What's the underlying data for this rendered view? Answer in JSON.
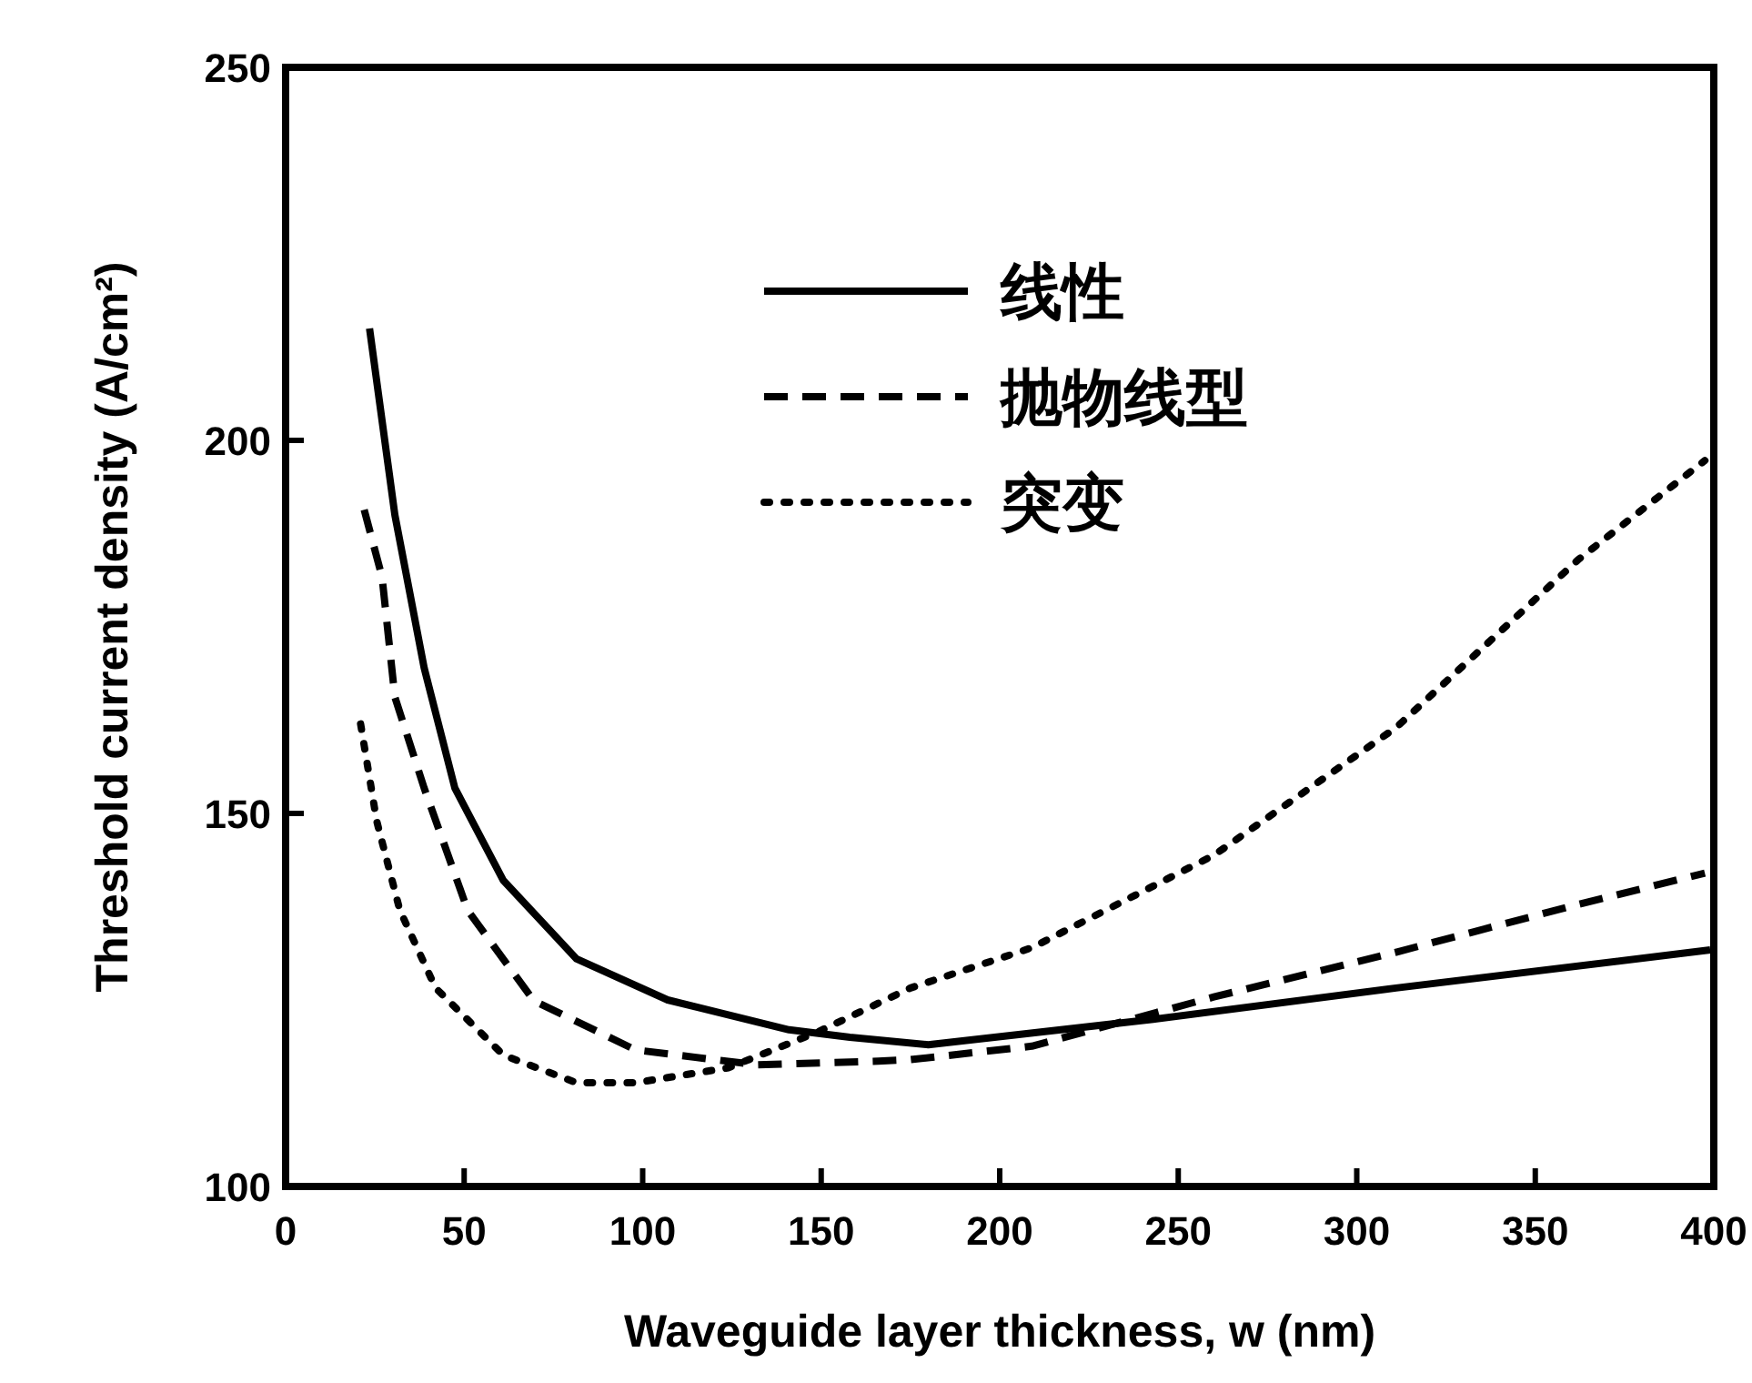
{
  "chart_data": {
    "type": "line",
    "xlabel": "Waveguide layer thickness, w (nm)",
    "ylabel": "Threshold current density (A/cm²)",
    "xlim": [
      0,
      400
    ],
    "ylim": [
      100,
      250
    ],
    "xticks": [
      0,
      50,
      100,
      150,
      200,
      250,
      300,
      350,
      400
    ],
    "yticks": [
      100,
      150,
      200,
      250
    ],
    "legend": "top",
    "series": [
      {
        "name": "线性",
        "color": "#000000",
        "line_style": "solid",
        "x": [
          23.5,
          30.6,
          38.8,
          47.4,
          61,
          81.5,
          107,
          141,
          158,
          180,
          243,
          311,
          399
        ],
        "values": [
          215,
          190,
          169.5,
          153.4,
          141,
          130.5,
          125,
          121,
          120,
          119,
          122.4,
          126.6,
          131.7
        ]
      },
      {
        "name": "抛物线型",
        "color": "#000000",
        "line_style": "dashed",
        "x": [
          22,
          27,
          30.6,
          38.8,
          51,
          69.5,
          98,
          132,
          166,
          175,
          209,
          260,
          311,
          362,
          397.5
        ],
        "values": [
          190.7,
          181.7,
          165.6,
          153.4,
          137,
          124.9,
          118.3,
          116.3,
          116.8,
          117,
          118.8,
          125.4,
          131.4,
          137.8,
          142
        ]
      },
      {
        "name": "突变",
        "color": "#000000",
        "line_style": "dotted",
        "x": [
          21,
          25.5,
          32,
          42,
          61,
          81.5,
          98,
          124,
          149,
          175,
          209,
          260,
          311,
          362,
          397.5
        ],
        "values": [
          162,
          149,
          137,
          126.6,
          117.6,
          113.9,
          113.9,
          115.9,
          120.7,
          126.6,
          132,
          144.4,
          161.5,
          184,
          197.3
        ]
      }
    ]
  }
}
